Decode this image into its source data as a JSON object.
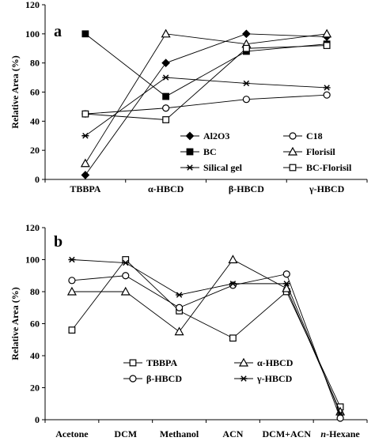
{
  "chart_data": [
    {
      "type": "line",
      "panel_label": "a",
      "ylabel": "Relative Area (%)",
      "ylim": [
        0,
        120
      ],
      "yticks": [
        0,
        20,
        40,
        60,
        80,
        100,
        120
      ],
      "categories": [
        "TBBPA",
        "α-HBCD",
        "β-HBCD",
        "γ-HBCD"
      ],
      "series": [
        {
          "name": "Al2O3",
          "marker": "diamond-filled",
          "values": [
            3,
            80,
            100,
            98
          ]
        },
        {
          "name": "C18",
          "marker": "circle-open",
          "values": [
            45,
            49,
            55,
            58
          ]
        },
        {
          "name": "BC",
          "marker": "square-filled",
          "values": [
            100,
            57,
            88,
            93
          ]
        },
        {
          "name": "Florisil",
          "marker": "triangle-open",
          "values": [
            11,
            100,
            93,
            100
          ]
        },
        {
          "name": "Silical gel",
          "marker": "star",
          "values": [
            30,
            70,
            66,
            63
          ]
        },
        {
          "name": "BC-Florisil",
          "marker": "square-open",
          "values": [
            45,
            41,
            90,
            92
          ]
        }
      ],
      "legend": {
        "columns": 2,
        "placement": "lower-right"
      }
    },
    {
      "type": "line",
      "panel_label": "b",
      "ylabel": "Relative Area (%)",
      "ylim": [
        0,
        120
      ],
      "yticks": [
        0,
        20,
        40,
        60,
        80,
        100,
        120
      ],
      "categories": [
        "Acetone",
        "DCM",
        "Methanol",
        "ACN",
        "DCM+ACN",
        "n-Hexane"
      ],
      "series": [
        {
          "name": "TBBPA",
          "marker": "square-open",
          "values": [
            56,
            100,
            68,
            51,
            80,
            8
          ]
        },
        {
          "name": "α-HBCD",
          "marker": "triangle-open",
          "values": [
            80,
            80,
            55,
            100,
            82,
            5
          ]
        },
        {
          "name": "β-HBCD",
          "marker": "circle-open",
          "values": [
            87,
            90,
            70,
            84,
            91,
            1
          ]
        },
        {
          "name": "γ-HBCD",
          "marker": "star",
          "values": [
            100,
            98,
            78,
            85,
            85,
            4
          ]
        }
      ],
      "legend": {
        "columns": 2,
        "placement": "lower-center"
      }
    }
  ]
}
